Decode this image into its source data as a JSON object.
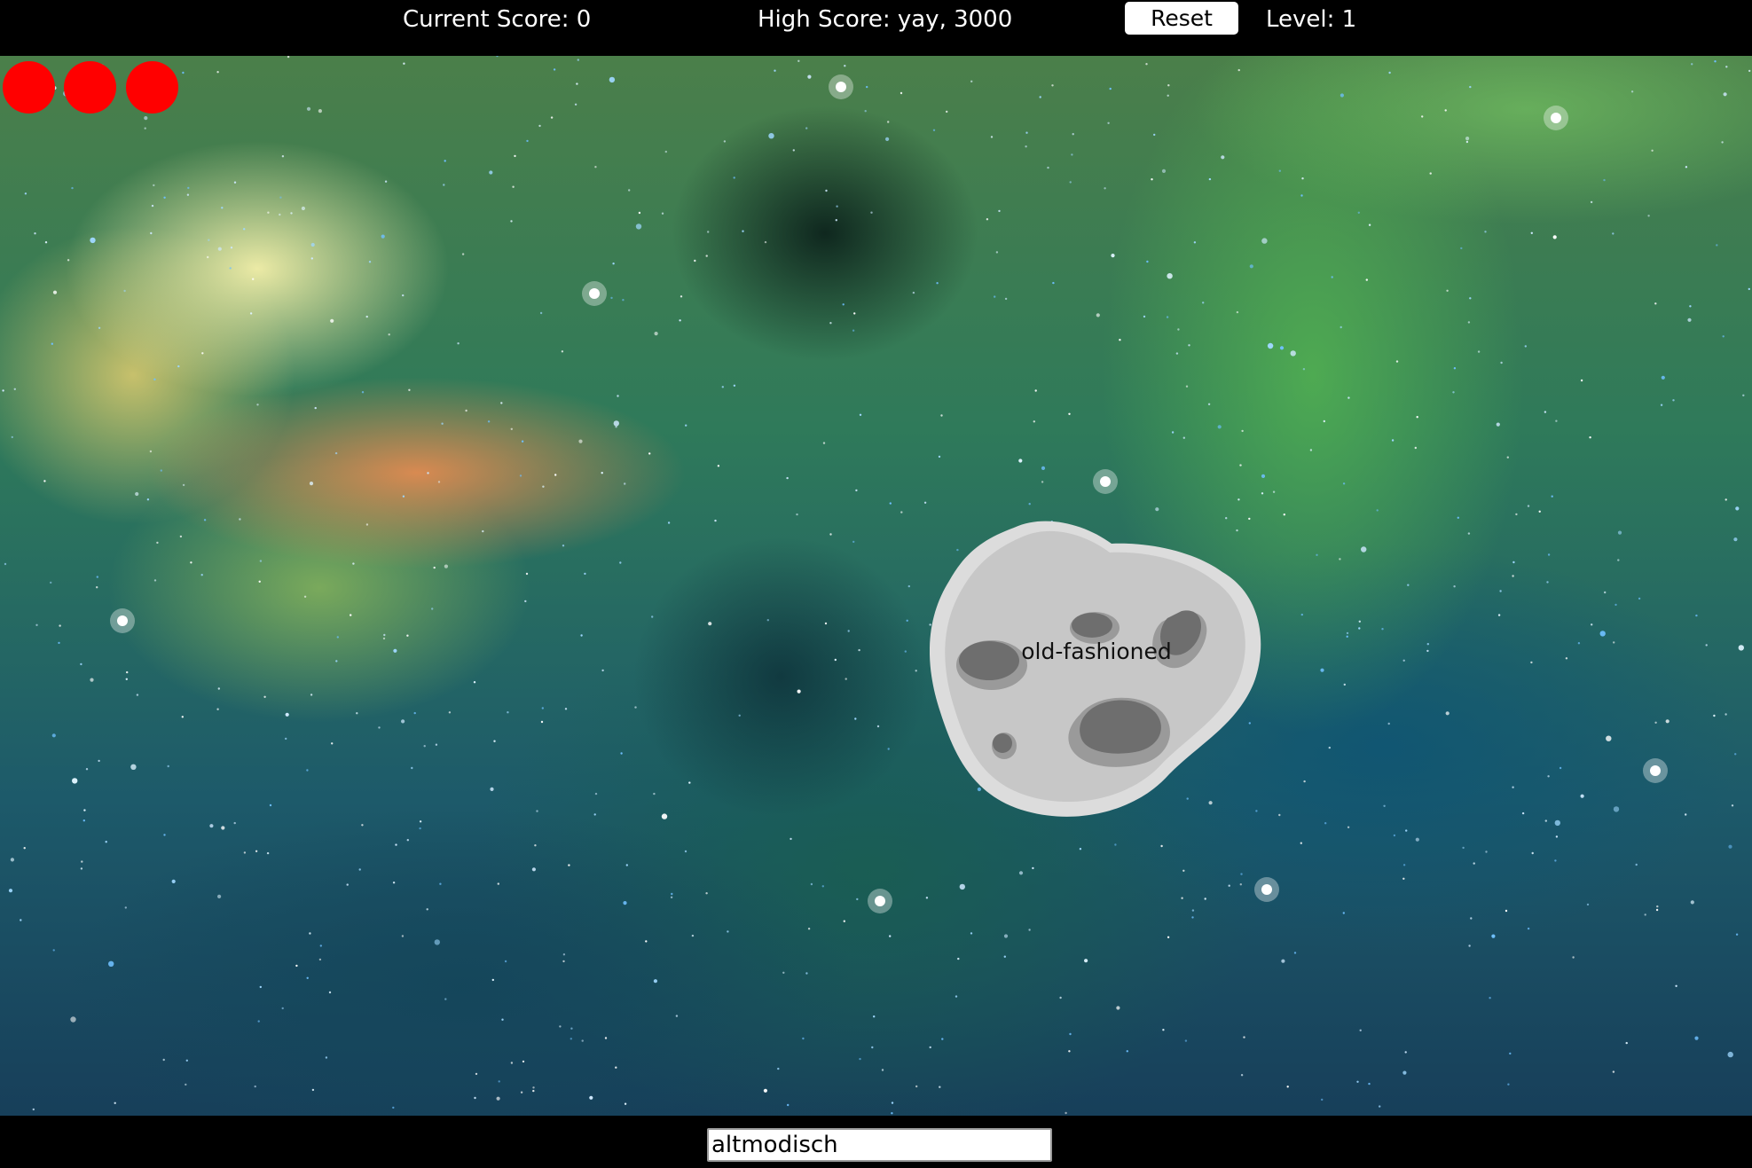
{
  "header": {
    "current_score_label": "Current Score: 0",
    "high_score_label": "High Score: yay, 3000",
    "reset_label": "Reset",
    "level_label": "Level: 1"
  },
  "lives": {
    "count": 3,
    "color": "#ff0000"
  },
  "asteroid": {
    "word": "old-fashioned",
    "color": "#c8c8c8",
    "crater_color": "#6e6e6e"
  },
  "answer": {
    "value": "altmodisch"
  },
  "colors": {
    "bar_background": "#000000",
    "text": "#ffffff"
  }
}
